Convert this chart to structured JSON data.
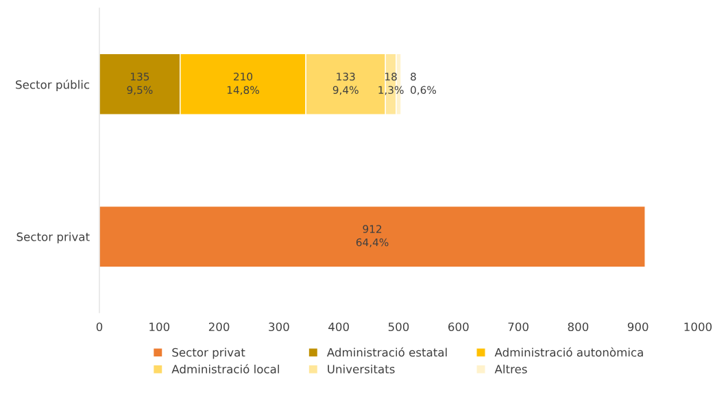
{
  "chart_data": {
    "type": "bar",
    "orientation": "horizontal",
    "stacked": true,
    "categories": [
      "Sector públic",
      "Sector privat"
    ],
    "series": [
      {
        "name": "Sector privat",
        "color": "#ed7d31",
        "values": [
          null,
          912
        ],
        "value_labels": [
          null,
          "912\n64,4%"
        ]
      },
      {
        "name": "Administració estatal",
        "color": "#bf9000",
        "values": [
          135,
          null
        ],
        "value_labels": [
          "135\n9,5%",
          null
        ]
      },
      {
        "name": "Administració autonòmica",
        "color": "#ffc000",
        "values": [
          210,
          null
        ],
        "value_labels": [
          "210\n14,8%",
          null
        ]
      },
      {
        "name": "Administració local",
        "color": "#ffd966",
        "values": [
          133,
          null
        ],
        "value_labels": [
          "133\n9,4%",
          null
        ]
      },
      {
        "name": "Universitats",
        "color": "#ffe699",
        "values": [
          18,
          null
        ],
        "value_labels": [
          "18\n1,3%",
          null
        ]
      },
      {
        "name": "Altres",
        "color": "#fff2cc",
        "values": [
          8,
          null
        ],
        "value_labels": [
          "8\n0,6%",
          null
        ]
      }
    ],
    "xlim": [
      0,
      1000
    ],
    "xticks": [
      0,
      100,
      200,
      300,
      400,
      500,
      600,
      700,
      800,
      900,
      1000
    ],
    "grid": false,
    "legend": "bottom"
  }
}
